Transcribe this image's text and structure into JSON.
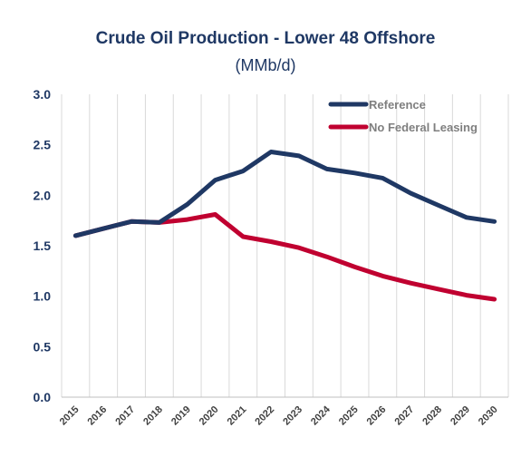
{
  "chart_data": {
    "type": "line",
    "title": "Crude Oil Production - Lower 48 Offshore",
    "subtitle": "(MMb/d)",
    "x": [
      "2015",
      "2016",
      "2017",
      "2018",
      "2019",
      "2020",
      "2021",
      "2022",
      "2023",
      "2024",
      "2025",
      "2026",
      "2027",
      "2028",
      "2029",
      "2030"
    ],
    "ylim": [
      0,
      3.0
    ],
    "yticks": [
      "0.0",
      "0.5",
      "1.0",
      "1.5",
      "2.0",
      "2.5",
      "3.0"
    ],
    "grid": "vertical",
    "legend_position": "top-right",
    "series": [
      {
        "name": "Reference",
        "color": "#1f3864",
        "values": [
          1.6,
          1.67,
          1.74,
          1.73,
          1.91,
          2.15,
          2.24,
          2.43,
          2.39,
          2.26,
          2.22,
          2.17,
          2.02,
          1.9,
          1.78,
          1.74
        ]
      },
      {
        "name": "No Federal Leasing",
        "color": "#c00030",
        "values": [
          1.6,
          1.67,
          1.74,
          1.73,
          1.76,
          1.81,
          1.59,
          1.54,
          1.48,
          1.39,
          1.29,
          1.2,
          1.13,
          1.07,
          1.01,
          0.97
        ]
      }
    ]
  }
}
